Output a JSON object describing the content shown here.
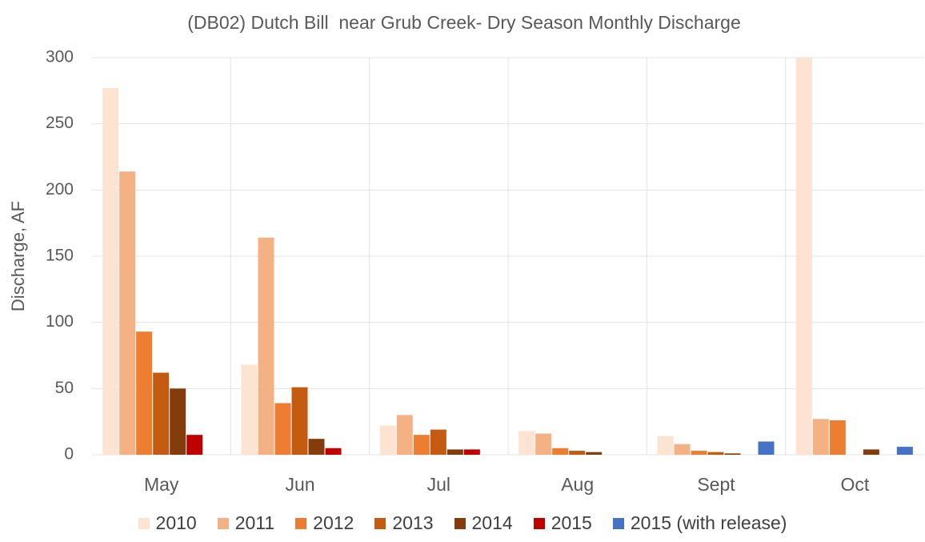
{
  "chart_data": {
    "type": "bar",
    "title": "(DB02) Dutch Bill  near Grub Creek- Dry Season Monthly Discharge",
    "y_label": "Discharge, AF",
    "categories": [
      "May",
      "Jun",
      "Jul",
      "Aug",
      "Sept",
      "Oct"
    ],
    "series": [
      {
        "name": "2010",
        "color": "#fde3d2",
        "values": [
          277,
          68,
          22,
          18,
          14,
          300
        ]
      },
      {
        "name": "2011",
        "color": "#f4b183",
        "values": [
          214,
          164,
          30,
          16,
          8,
          27
        ]
      },
      {
        "name": "2012",
        "color": "#ed7d31",
        "values": [
          93,
          39,
          15,
          5,
          3,
          26
        ]
      },
      {
        "name": "2013",
        "color": "#c55a11",
        "values": [
          62,
          51,
          19,
          3,
          2,
          0
        ]
      },
      {
        "name": "2014",
        "color": "#843c0c",
        "values": [
          50,
          12,
          4,
          2,
          1,
          4
        ]
      },
      {
        "name": "2015",
        "color": "#c00000",
        "values": [
          15,
          5,
          4,
          0,
          0,
          0
        ]
      },
      {
        "name": "2015 (with release)",
        "color": "#4472c4",
        "values": [
          null,
          null,
          null,
          null,
          10,
          6
        ]
      }
    ],
    "ylim": [
      0,
      300
    ],
    "yticks": [
      0,
      50,
      100,
      150,
      200,
      250,
      300
    ],
    "grid": true,
    "legend": "bottom"
  }
}
